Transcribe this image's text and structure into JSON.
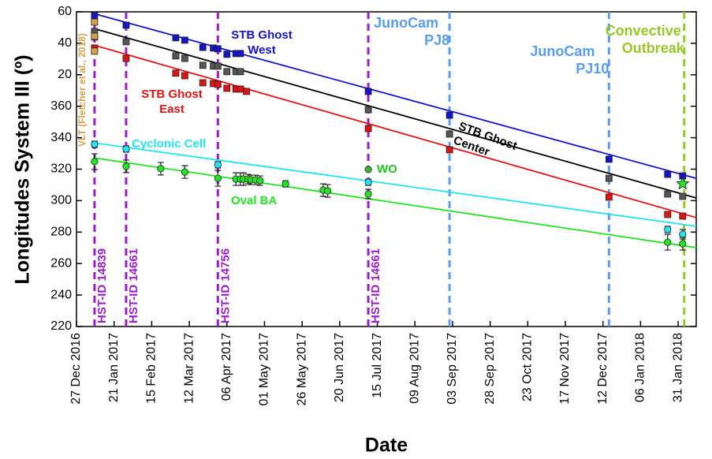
{
  "chart_data": {
    "type": "scatter",
    "xlabel": "Date",
    "ylabel": "Longitudes System III (º)",
    "xlim": [
      "2016-12-27",
      "2018-02-12"
    ],
    "ylim": [
      220,
      420
    ],
    "yticks": [
      220,
      240,
      260,
      280,
      300,
      320,
      340,
      360,
      {
        "value": 380,
        "label": "20"
      },
      {
        "value": 400,
        "label": "40"
      },
      {
        "value": 420,
        "label": "60"
      }
    ],
    "xticks": [
      {
        "value": "2016-12-27",
        "label": "27 Dec 2016"
      },
      {
        "value": "2017-01-21",
        "label": "21 Jan 2017"
      },
      {
        "value": "2017-02-15",
        "label": "15 Feb 2017"
      },
      {
        "value": "2017-03-12",
        "label": "12 Mar 2017"
      },
      {
        "value": "2017-04-06",
        "label": "06 Apr 2017"
      },
      {
        "value": "2017-05-01",
        "label": "01 May 2017"
      },
      {
        "value": "2017-05-26",
        "label": "26 May 2017"
      },
      {
        "value": "2017-06-20",
        "label": "20 Jun 2017"
      },
      {
        "value": "2017-07-15",
        "label": "15 Jul 2017"
      },
      {
        "value": "2017-08-09",
        "label": "09 Aug 2017"
      },
      {
        "value": "2017-09-03",
        "label": "03 Sep 2017"
      },
      {
        "value": "2017-09-28",
        "label": "28 Sep 2017"
      },
      {
        "value": "2017-10-23",
        "label": "23 Oct 2017"
      },
      {
        "value": "2017-11-17",
        "label": "17 Nov 2017"
      },
      {
        "value": "2017-12-12",
        "label": "12 Dec 2017"
      },
      {
        "value": "2018-01-06",
        "label": "06 Jan 2018"
      },
      {
        "value": "2018-01-31",
        "label": "31 Jan 2018"
      }
    ],
    "series": [
      {
        "label": [
          "STB Ghost",
          "West"
        ],
        "color": "#1414c8",
        "marker": "square",
        "x": [
          "2017-01-08",
          "2017-01-29",
          "2017-03-03",
          "2017-03-09",
          "2017-03-21",
          "2017-03-28",
          "2017-03-31",
          "2017-04-06",
          "2017-04-12",
          "2017-04-15",
          "2017-07-09",
          "2017-09-01",
          "2017-12-16",
          "2018-01-24",
          "2018-02-03"
        ],
        "values": [
          417.5,
          411.5,
          403.5,
          402,
          397.4,
          397,
          396.5,
          393,
          393.5,
          393.5,
          369.4,
          354.3,
          326.3,
          316.7,
          315.7
        ],
        "fit": {
          "x": [
            "2017-01-07",
            "2018-02-12"
          ],
          "values": [
            419,
            314.2
          ]
        }
      },
      {
        "label": [
          "STB Ghost",
          "Center"
        ],
        "color": "#555555",
        "marker": "square",
        "x": [
          "2017-01-08",
          "2017-01-08",
          "2017-01-29",
          "2017-03-03",
          "2017-03-09",
          "2017-03-21",
          "2017-03-28",
          "2017-03-31",
          "2017-04-06",
          "2017-04-12",
          "2017-04-15",
          "2017-07-09",
          "2017-09-01",
          "2017-12-16",
          "2018-01-24",
          "2018-02-03"
        ],
        "values": [
          407.5,
          404,
          401,
          392,
          390.4,
          386,
          385.5,
          385.5,
          382,
          382,
          382,
          357.8,
          342.3,
          314.2,
          304.2,
          302.7
        ],
        "fit": {
          "x": [
            "2017-01-07",
            "2018-02-12"
          ],
          "values": [
            409.5,
            301.7
          ]
        }
      },
      {
        "label": [
          "STB Ghost",
          "East"
        ],
        "color": "#e01414",
        "marker": "square",
        "x": [
          "2017-01-08",
          "2017-01-29",
          "2017-03-03",
          "2017-03-09",
          "2017-03-21",
          "2017-03-28",
          "2017-03-31",
          "2017-04-06",
          "2017-04-12",
          "2017-04-15",
          "2017-04-19",
          "2017-07-09",
          "2017-09-01",
          "2017-12-16",
          "2018-01-24",
          "2018-02-03"
        ],
        "values": [
          397,
          390.4,
          381,
          379.4,
          374.9,
          374.4,
          373.9,
          371.4,
          370.9,
          370.9,
          369.4,
          345.8,
          332.3,
          302.2,
          291.2,
          290.2
        ],
        "fit": {
          "x": [
            "2017-01-07",
            "2018-02-12"
          ],
          "values": [
            399,
            289.2
          ]
        }
      },
      {
        "label": [
          "VLT (Fletcher et al., 2018)"
        ],
        "color": "#d4a24c",
        "marker": "square",
        "x": [
          "2017-01-08",
          "2017-01-08",
          "2017-01-08"
        ],
        "values": [
          413.5,
          404.5,
          395
        ]
      },
      {
        "label": [
          "Cyclonic Cell"
        ],
        "color": "#22e4f4",
        "marker": "circle",
        "x": [
          "2017-01-08",
          "2017-01-29",
          "2017-03-31",
          "2017-07-09",
          "2018-01-24",
          "2018-02-03"
        ],
        "values": [
          335.8,
          332.8,
          322.8,
          311.7,
          281.7,
          278.6
        ],
        "errors": [
          2,
          2,
          2,
          2,
          2,
          3
        ],
        "fit": {
          "x": [
            "2017-01-07",
            "2018-02-12"
          ],
          "values": [
            336.8,
            283.7
          ]
        }
      },
      {
        "label": [
          "Oval BA"
        ],
        "color": "#22e422",
        "marker": "circle",
        "x": [
          "2017-01-08",
          "2017-01-29",
          "2017-02-21",
          "2017-03-09",
          "2017-03-31",
          "2017-04-12",
          "2017-04-15",
          "2017-04-17",
          "2017-04-20",
          "2017-04-22",
          "2017-04-25",
          "2017-04-28",
          "2017-05-15",
          "2017-06-09",
          "2017-06-12",
          "2017-07-09",
          "2018-01-24",
          "2018-02-03"
        ],
        "values": [
          324.8,
          321.8,
          320.3,
          318.2,
          314.2,
          313.7,
          313.7,
          313.7,
          313.7,
          313.2,
          313.2,
          312.7,
          310.7,
          306.7,
          306.2,
          304.2,
          273.6,
          272.6
        ],
        "errors": [
          5,
          4,
          4,
          4,
          5,
          4,
          4,
          4,
          3,
          3,
          3,
          3,
          2,
          4,
          4,
          3,
          5,
          4
        ],
        "fit": {
          "x": [
            "2017-01-07",
            "2018-02-12"
          ],
          "values": [
            327.3,
            270.1
          ]
        }
      },
      {
        "label": [
          "WO"
        ],
        "color": "#3cb43c",
        "marker": "circle",
        "x": [
          "2017-07-09"
        ],
        "values": [
          319.8
        ]
      },
      {
        "color": "#22e422",
        "marker": "star",
        "x": [
          "2018-02-03"
        ],
        "values": [
          310.7
        ]
      }
    ],
    "vlines": [
      {
        "x": "2017-01-08",
        "color": "#9a1ec8",
        "label": [
          "HST-ID 14839"
        ]
      },
      {
        "x": "2017-01-29",
        "color": "#9a1ec8",
        "label": [
          "HST-ID 14661"
        ]
      },
      {
        "x": "2017-03-31",
        "color": "#9a1ec8",
        "label": [
          "HST-ID 14756"
        ]
      },
      {
        "x": "2017-07-09",
        "color": "#9a1ec8",
        "label": [
          "HST-ID 14661"
        ]
      },
      {
        "x": "2017-09-01",
        "color": "#5a9cf0",
        "label": [
          "JunoCam",
          "PJ8"
        ]
      },
      {
        "x": "2017-12-16",
        "color": "#5a9cf0",
        "label": [
          "JunoCam",
          "PJ10"
        ]
      },
      {
        "x": "2018-02-04",
        "color": "#98c828",
        "label": [
          "Convective",
          "Outbreak"
        ]
      }
    ]
  }
}
